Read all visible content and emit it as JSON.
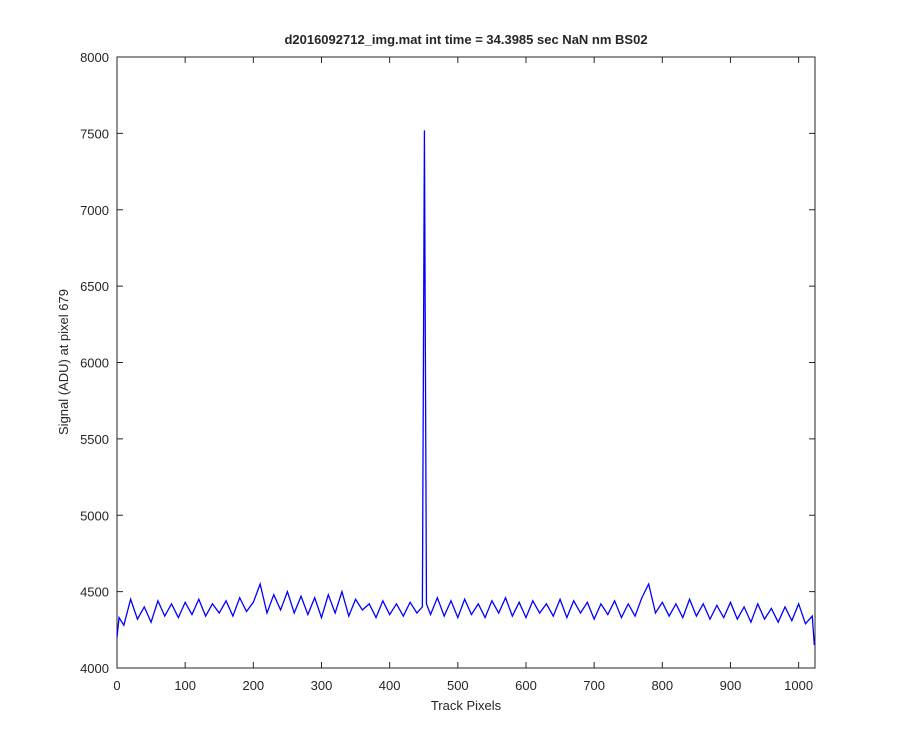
{
  "chart_data": {
    "type": "line",
    "title": "d2016092712_img.mat int time = 34.3985 sec  NaN nm BS02",
    "x_label": "Track Pixels",
    "y_label": "Signal (ADU) at pixel 679",
    "x": [
      0,
      3,
      10,
      20,
      30,
      40,
      50,
      60,
      70,
      80,
      90,
      100,
      110,
      120,
      130,
      140,
      150,
      160,
      170,
      180,
      190,
      200,
      210,
      220,
      230,
      240,
      250,
      260,
      270,
      280,
      290,
      300,
      310,
      320,
      330,
      340,
      350,
      360,
      370,
      380,
      390,
      400,
      410,
      420,
      430,
      440,
      448,
      451,
      454,
      460,
      470,
      480,
      490,
      500,
      510,
      520,
      530,
      540,
      550,
      560,
      570,
      580,
      590,
      600,
      610,
      620,
      630,
      640,
      650,
      660,
      670,
      680,
      690,
      700,
      710,
      720,
      730,
      740,
      750,
      760,
      770,
      780,
      790,
      800,
      810,
      820,
      830,
      840,
      850,
      860,
      870,
      880,
      890,
      900,
      910,
      920,
      930,
      940,
      950,
      960,
      970,
      980,
      990,
      1000,
      1010,
      1020,
      1023
    ],
    "series": [
      {
        "name": "Signal",
        "color": "#0000ff",
        "values": [
          4200,
          4330,
          4280,
          4450,
          4320,
          4400,
          4300,
          4440,
          4340,
          4420,
          4330,
          4430,
          4350,
          4450,
          4340,
          4420,
          4360,
          4440,
          4340,
          4460,
          4370,
          4430,
          4550,
          4360,
          4480,
          4380,
          4500,
          4360,
          4470,
          4350,
          4460,
          4330,
          4480,
          4360,
          4500,
          4340,
          4450,
          4380,
          4420,
          4330,
          4440,
          4350,
          4420,
          4340,
          4430,
          4360,
          4400,
          7520,
          4420,
          4350,
          4460,
          4340,
          4440,
          4330,
          4450,
          4350,
          4420,
          4330,
          4440,
          4360,
          4460,
          4340,
          4430,
          4330,
          4440,
          4360,
          4420,
          4340,
          4450,
          4330,
          4440,
          4360,
          4430,
          4320,
          4420,
          4350,
          4440,
          4330,
          4420,
          4340,
          4460,
          4550,
          4360,
          4430,
          4340,
          4420,
          4330,
          4450,
          4340,
          4420,
          4320,
          4410,
          4330,
          4430,
          4320,
          4400,
          4300,
          4420,
          4320,
          4390,
          4300,
          4400,
          4310,
          4420,
          4290,
          4340,
          4150
        ]
      }
    ],
    "xlim": [
      0,
      1024
    ],
    "ylim": [
      4000,
      8000
    ],
    "xticks": [
      0,
      100,
      200,
      300,
      400,
      500,
      600,
      700,
      800,
      900,
      1000
    ],
    "yticks": [
      4000,
      4500,
      5000,
      5500,
      6000,
      6500,
      7000,
      7500,
      8000
    ]
  }
}
